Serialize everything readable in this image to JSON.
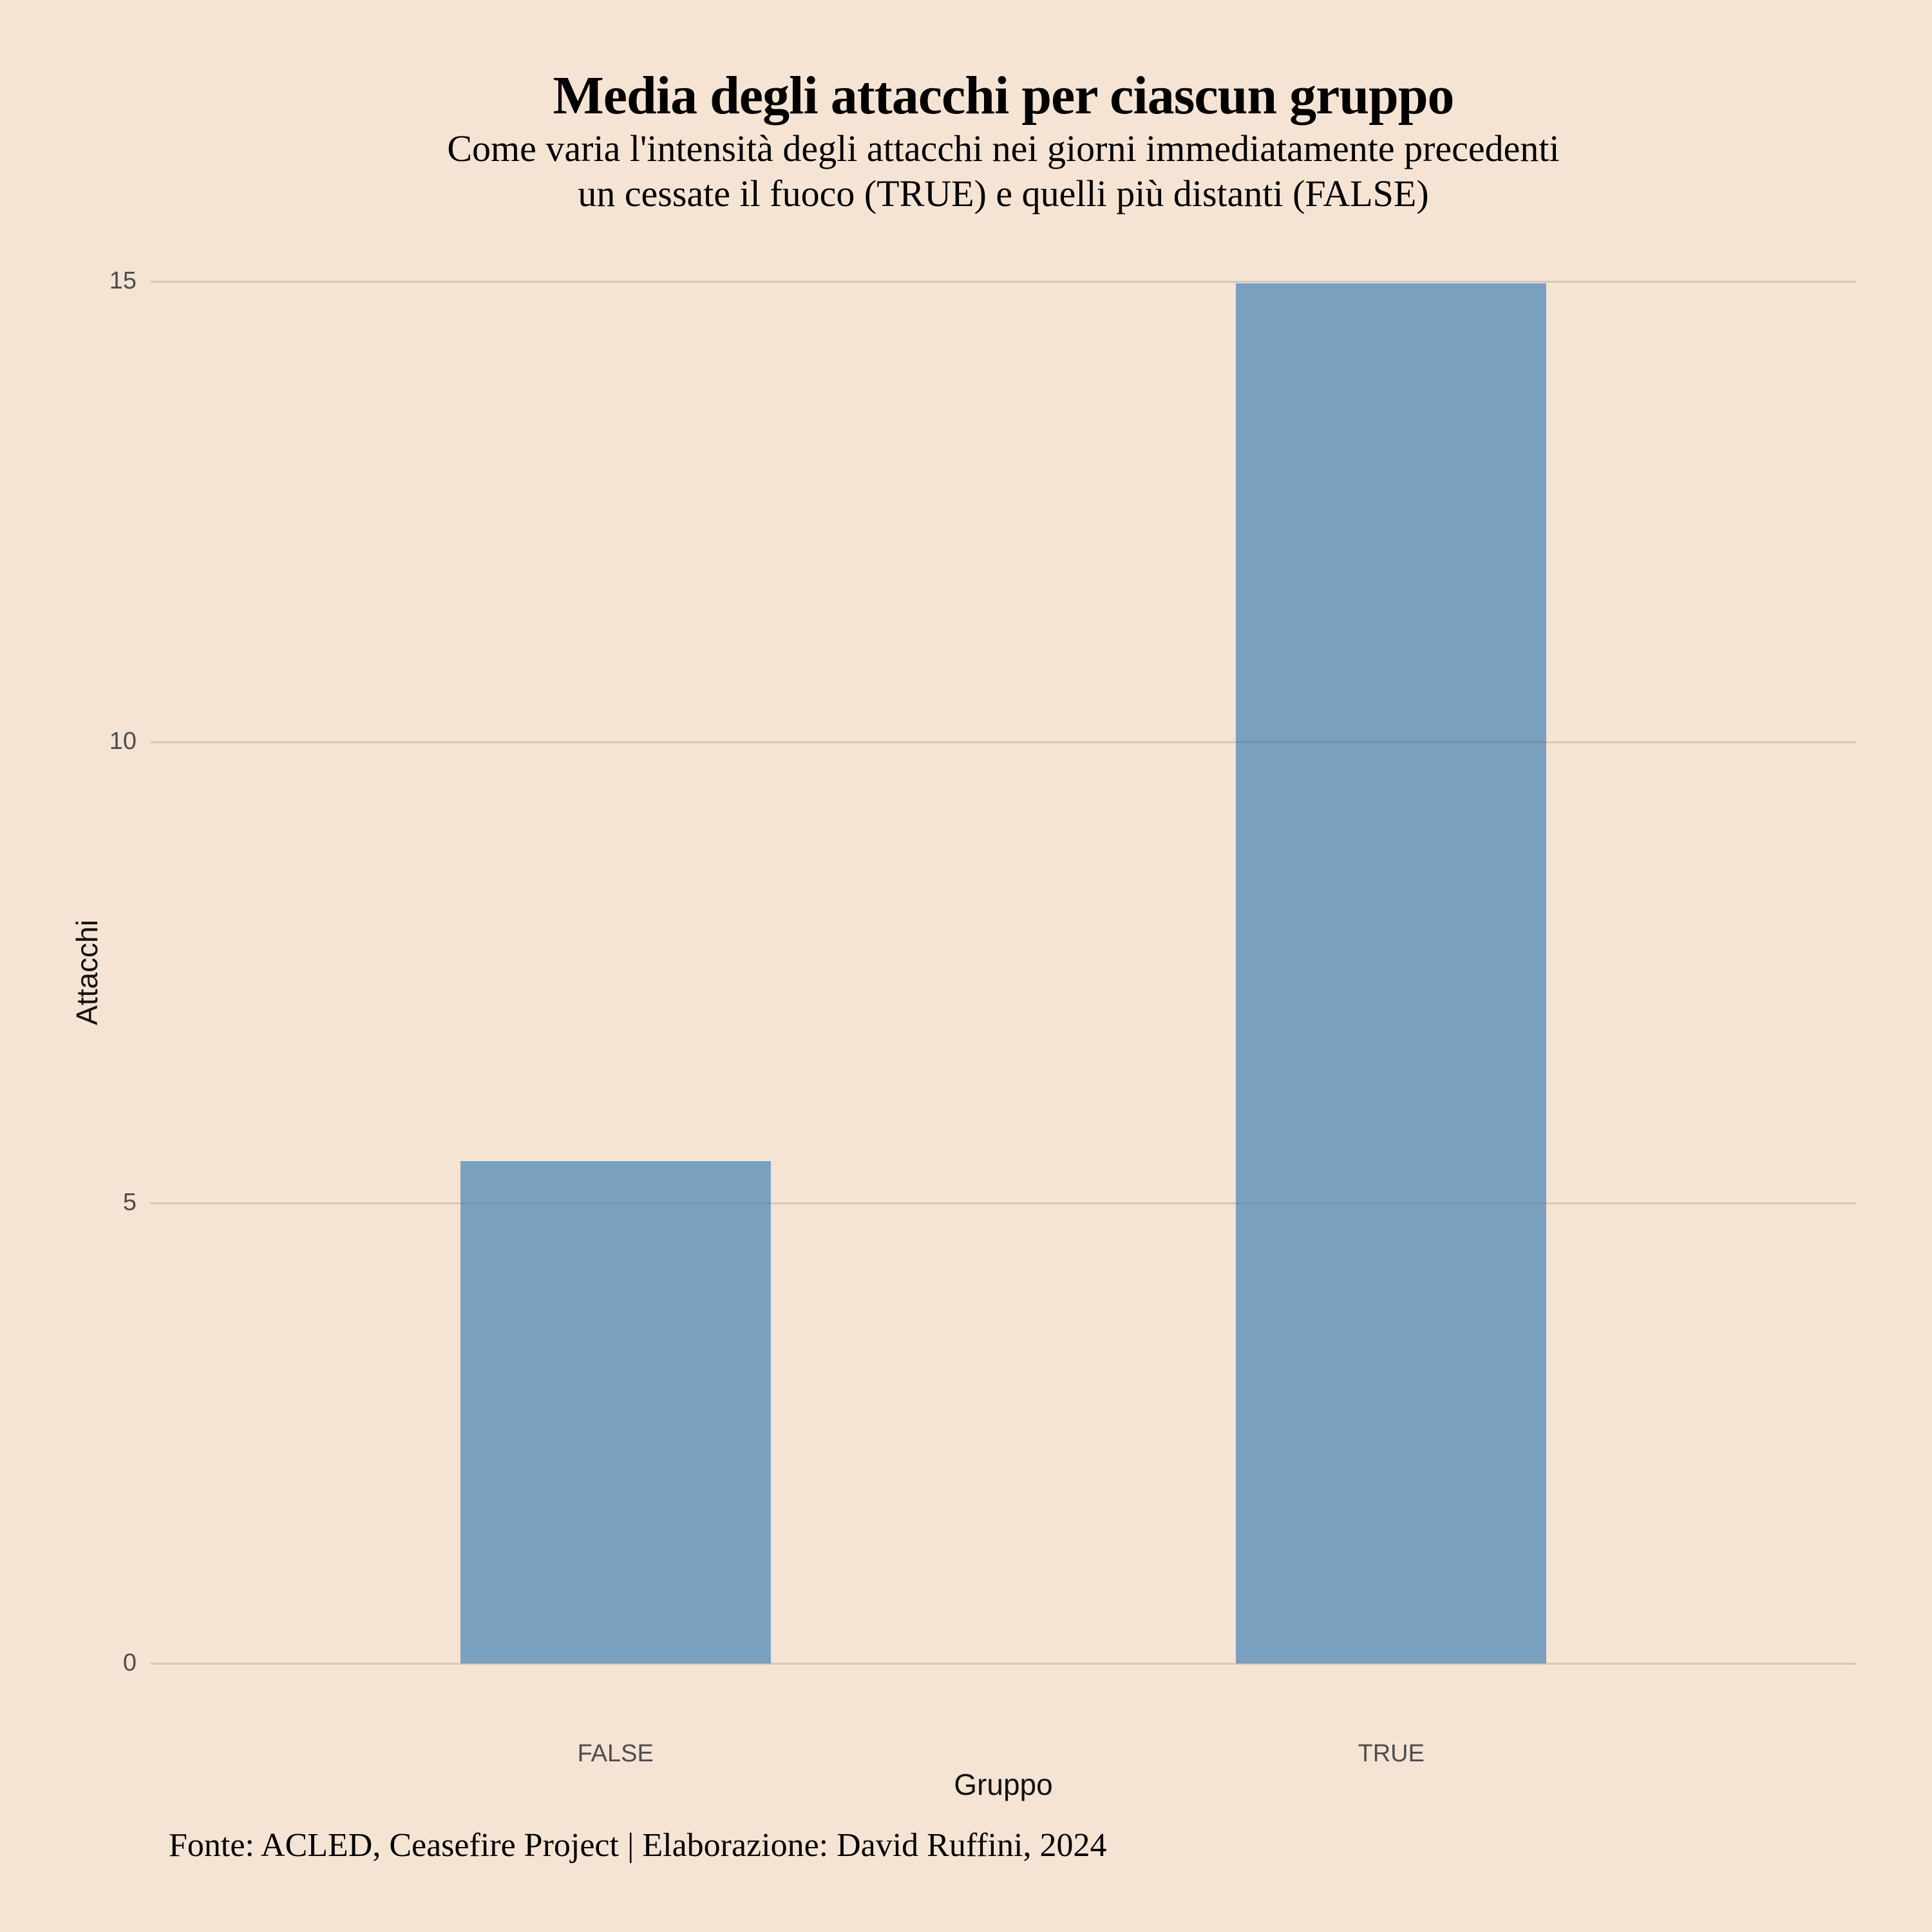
{
  "page": {
    "background_color": "#f5e4d4"
  },
  "chart_data": {
    "type": "bar",
    "title": "Media degli attacchi per ciascun gruppo",
    "subtitle_lines": [
      "Come varia l'intensità degli attacchi nei giorni immediatamente precedenti",
      "un cessate il fuoco (TRUE) e quelli più distanti (FALSE)"
    ],
    "xlabel": "Gruppo",
    "ylabel": "Attacchi",
    "categories": [
      "FALSE",
      "TRUE"
    ],
    "values": [
      5.45,
      14.98
    ],
    "ylim": [
      0,
      15
    ],
    "yticks": [
      0,
      5,
      10,
      15
    ],
    "grid": "horizontal-only",
    "legend": "none",
    "caption": "Fonte: ACLED, Ceasefire Project | Elaborazione: David Ruffini, 2024",
    "bar_color": "#7aa0c0",
    "background_color": "#f5e4d4",
    "tick_label_color": "#4d4d4d",
    "axis_title_color": "#111111",
    "text_color": "#000000"
  }
}
